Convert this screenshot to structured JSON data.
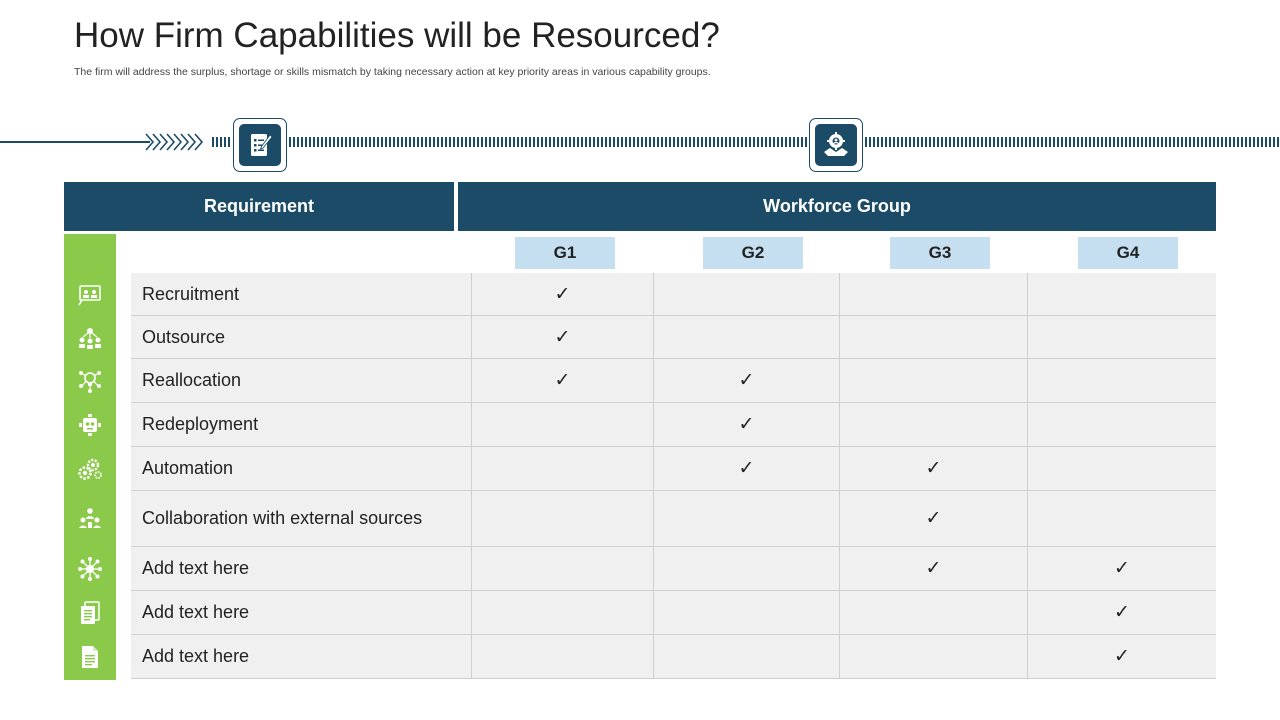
{
  "title": "How Firm Capabilities will be Resourced?",
  "subtitle": "The firm will address the surplus, shortage or skills mismatch by taking necessary action at key priority areas in various capability groups.",
  "timeline": {
    "icons": [
      "checklist-icon",
      "handshake-gear-icon"
    ]
  },
  "table": {
    "header_requirement": "Requirement",
    "header_workforce": "Workforce Group",
    "groups": [
      "G1",
      "G2",
      "G3",
      "G4"
    ],
    "check_mark": "✓",
    "rows": [
      {
        "label": "Recruitment",
        "icon": "recruitment-board-icon",
        "checks": [
          true,
          false,
          false,
          false
        ]
      },
      {
        "label": "Outsource",
        "icon": "team-network-icon",
        "checks": [
          true,
          false,
          false,
          false
        ]
      },
      {
        "label": "Reallocation",
        "icon": "idea-network-icon",
        "checks": [
          true,
          true,
          false,
          false
        ]
      },
      {
        "label": "Redeployment",
        "icon": "gear-robot-icon",
        "checks": [
          false,
          true,
          false,
          false
        ]
      },
      {
        "label": "Automation",
        "icon": "gears-icon",
        "checks": [
          false,
          true,
          true,
          false
        ]
      },
      {
        "label": "Collaboration with external sources",
        "icon": "people-collaboration-icon",
        "checks": [
          false,
          false,
          true,
          false
        ]
      },
      {
        "label": "Add text here",
        "icon": "network-hub-icon",
        "checks": [
          false,
          false,
          true,
          true
        ]
      },
      {
        "label": "Add text here",
        "icon": "documents-icon",
        "checks": [
          false,
          false,
          false,
          true
        ]
      },
      {
        "label": "Add text here",
        "icon": "document-icon",
        "checks": [
          false,
          false,
          false,
          true
        ]
      }
    ]
  },
  "colors": {
    "navy": "#1c4b68",
    "green": "#8bc94b",
    "chip": "#c5dff0",
    "row_bg": "#f0f0f0"
  }
}
